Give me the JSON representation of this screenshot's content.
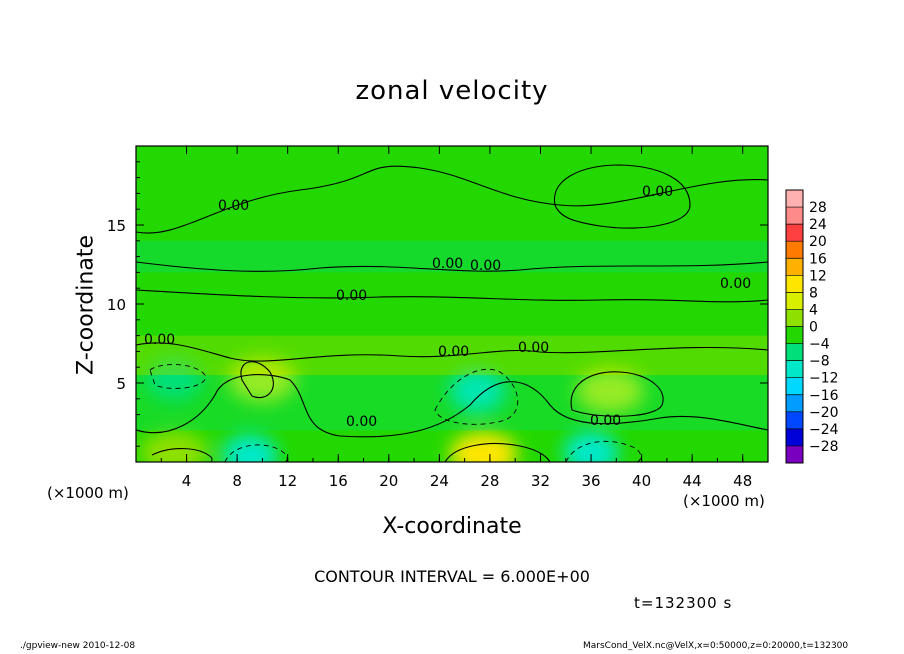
{
  "page": {
    "footer_left": "./gpview-new   2010-12-08",
    "footer_right": "MarsCond_VelX.nc@VelX,x=0:50000,z=0:20000,t=132300"
  },
  "chart_data": {
    "type": "heatmap",
    "title": "zonal velocity",
    "xlabel": "X-coordinate",
    "ylabel": "Z-coordinate",
    "x_unit": "(×1000 m)",
    "y_unit": "",
    "xlim": [
      0,
      50
    ],
    "ylim": [
      0,
      20
    ],
    "x_ticks": [
      4,
      8,
      12,
      16,
      20,
      24,
      28,
      32,
      36,
      40,
      44,
      48
    ],
    "y_ticks": [
      5,
      10,
      15
    ],
    "contour_interval": "CONTOUR INTERVAL = 6.000E+00",
    "time_label": "t=132300 s",
    "contour_labels": [
      "0.00",
      "0.00",
      "0.00",
      "0.00",
      "0.00",
      "0.00",
      "0.00",
      "0.00",
      "0.00",
      "0.00",
      "0.00"
    ],
    "colorbar": {
      "levels": [
        28,
        24,
        20,
        16,
        12,
        8,
        4,
        0,
        -4,
        -8,
        -12,
        -16,
        -20,
        -24,
        -28
      ],
      "colors": [
        "#ff8a8a",
        "#ff4040",
        "#ff7a00",
        "#ffb000",
        "#ffe600",
        "#d8f000",
        "#8ee000",
        "#22d800",
        "#00e07a",
        "#00e8c8",
        "#00d8ff",
        "#009cff",
        "#0048ff",
        "#0000d8",
        "#7a00c0"
      ]
    },
    "field_features": [
      {
        "kind": "max",
        "x": 37.5,
        "z": 4.5,
        "value": 8
      },
      {
        "kind": "max",
        "x": 27.5,
        "z": 0.5,
        "value": 10
      },
      {
        "kind": "max",
        "x": 10,
        "z": 5.2,
        "value": 7
      },
      {
        "kind": "max",
        "x": 3,
        "z": 0.6,
        "value": 5
      },
      {
        "kind": "min",
        "x": 27,
        "z": 4.5,
        "value": -10
      },
      {
        "kind": "min",
        "x": 36,
        "z": 0.6,
        "value": -10
      },
      {
        "kind": "min",
        "x": 9,
        "z": 0.4,
        "value": -9
      },
      {
        "kind": "min",
        "x": 3,
        "z": 5.3,
        "value": -6
      }
    ]
  }
}
